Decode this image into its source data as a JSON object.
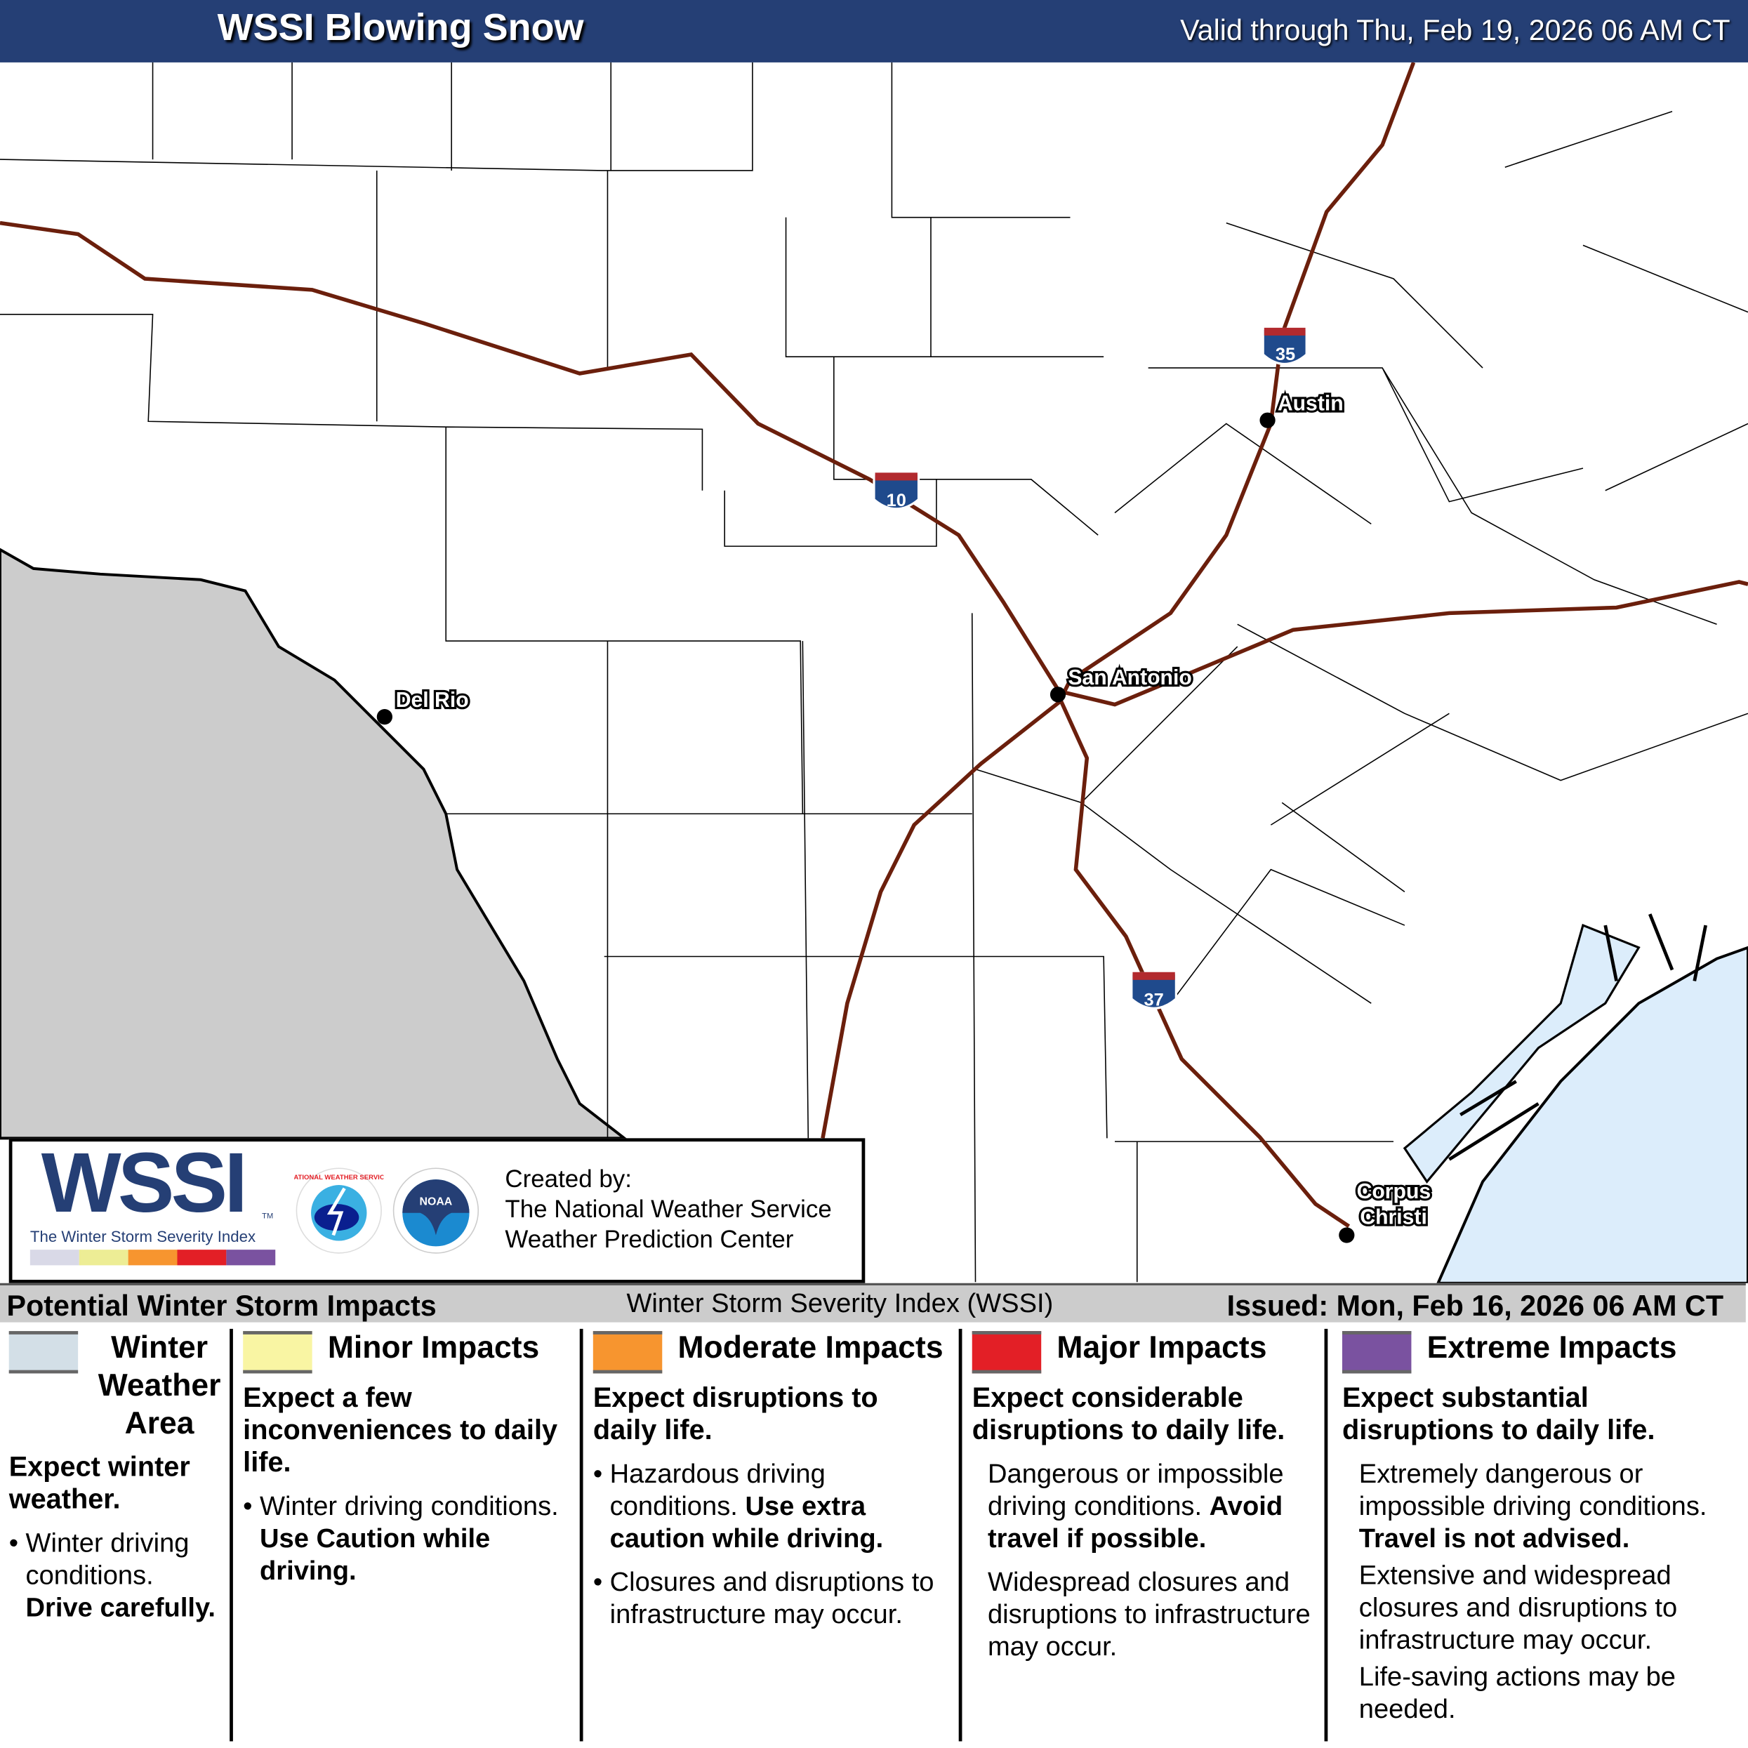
{
  "header": {
    "title": "WSSI Blowing Snow",
    "valid": "Valid through Thu, Feb 19, 2026 06 AM CT"
  },
  "map": {
    "cities": [
      "Austin",
      "San Antonio",
      "Del Rio",
      "Corpus Christi"
    ],
    "interstates": [
      "35",
      "10",
      "37"
    ],
    "colors": {
      "mexico": "#cccccc",
      "water": "#dcedfb",
      "highway": "#6b1f0c"
    }
  },
  "logo": {
    "wssi": "WSSI",
    "tm": "TM",
    "subtitle": "The Winter Storm Severity Index",
    "nws": "NATIONAL WEATHER SERVICE",
    "noaa": "NOAA",
    "created_by": "Created by:",
    "org1": "The National Weather Service",
    "org2": "Weather Prediction Center"
  },
  "bar": {
    "left": "Potential Winter Storm Impacts",
    "center": "Winter Storm Severity Index (WSSI)",
    "right": "Issued: Mon, Feb 16, 2026 06 AM CT"
  },
  "legend": [
    {
      "title": "Winter Weather Area",
      "color": "#d3dfe7",
      "lead": "Expect winter weather.",
      "b1": "Winter driving conditions.",
      "b1bold": "Drive carefully."
    },
    {
      "title": "Minor Impacts",
      "color": "#f9f5a3",
      "lead": "Expect a few inconveniences to daily life.",
      "b1": "Winter driving conditions.",
      "b1bold": "Use Caution while driving."
    },
    {
      "title": "Moderate Impacts",
      "color": "#f7952f",
      "lead": "Expect disruptions to daily life.",
      "b1": "Hazardous driving conditions.",
      "b1bold": "Use extra caution while driving.",
      "b2": "Closures and disruptions to infrastructure may occur."
    },
    {
      "title": "Major Impacts",
      "color": "#e31f26",
      "lead": "Expect considerable disruptions to daily life.",
      "b1": "Dangerous or impossible driving conditions.",
      "b1bold": "Avoid travel if possible.",
      "b2": "Widespread closures and disruptions to infrastructure may occur."
    },
    {
      "title": "Extreme Impacts",
      "color": "#7a52a0",
      "lead": "Expect substantial disruptions to daily life.",
      "b1": "Extremely dangerous or impossible driving conditions.",
      "b1bold": "Travel is not advised.",
      "b2": "Extensive and widespread closures and disruptions to infrastructure may occur.",
      "b3": "Life-saving actions may be needed."
    }
  ]
}
